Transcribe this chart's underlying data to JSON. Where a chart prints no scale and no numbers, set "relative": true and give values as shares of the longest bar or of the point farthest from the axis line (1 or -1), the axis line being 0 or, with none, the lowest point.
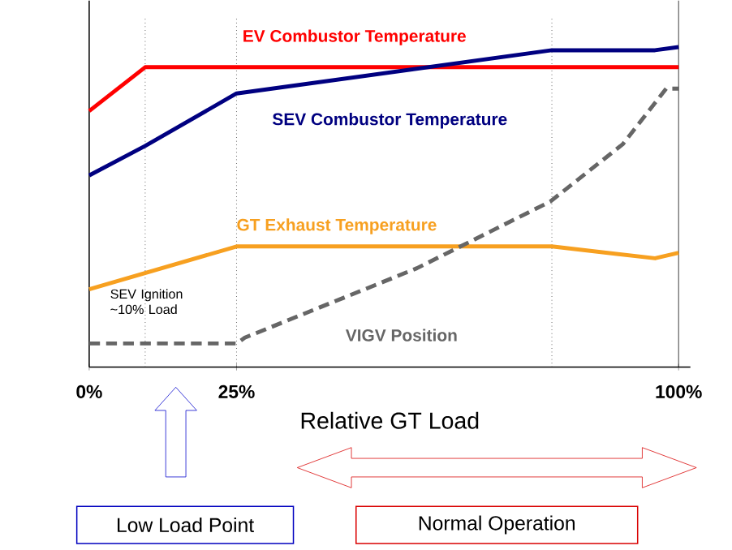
{
  "chart_data": {
    "type": "line",
    "relative": true,
    "xlabel": "Relative GT Load",
    "xlim": [
      0,
      102
    ],
    "xticks": [
      {
        "value": 0,
        "label": "0%"
      },
      {
        "value": 25,
        "label": "25%"
      },
      {
        "value": 100,
        "label": "100%"
      }
    ],
    "series": [
      {
        "name": "EV Combustor Temperature",
        "color": "#ff0000",
        "x": [
          0,
          9.5,
          100
        ],
        "values": [
          0.8,
          0.937,
          0.937
        ]
      },
      {
        "name": "SEV Combustor Temperature",
        "color": "#000080",
        "x": [
          0,
          9.5,
          25,
          78.5,
          96,
          100
        ],
        "values": [
          0.599,
          0.691,
          0.855,
          0.99,
          0.99,
          1
        ]
      },
      {
        "name": "GT Exhaust Temperature",
        "color": "#f7a020",
        "x": [
          0,
          25,
          78.5,
          96,
          100
        ],
        "values": [
          0.243,
          0.377,
          0.377,
          0.34,
          0.357
        ]
      },
      {
        "name": "VIGV Position",
        "color": "#666666",
        "line_style": "dashed",
        "x": [
          0,
          25,
          26.4,
          55.6,
          78.2,
          90.5,
          97.9,
          100
        ],
        "values": [
          0.074,
          0.074,
          0.092,
          0.309,
          0.517,
          0.696,
          0.87,
          0.87
        ]
      }
    ],
    "ref_lines": [
      {
        "axis": "x",
        "value": 9.5,
        "color": "#000000",
        "line_style": "dotted"
      },
      {
        "axis": "x",
        "value": 25,
        "color": "#000000",
        "line_style": "dotted"
      },
      {
        "axis": "x",
        "value": 78.5,
        "color": "#000000",
        "line_style": "dotted"
      },
      {
        "axis": "x",
        "value": 100,
        "color": "#000000",
        "line_style": "solid"
      }
    ],
    "annotations": [
      "SEV Ignition ~10% Load",
      "Low Load Point",
      "Normal Operation"
    ],
    "marker": "none",
    "legend": false,
    "grid": false
  }
}
